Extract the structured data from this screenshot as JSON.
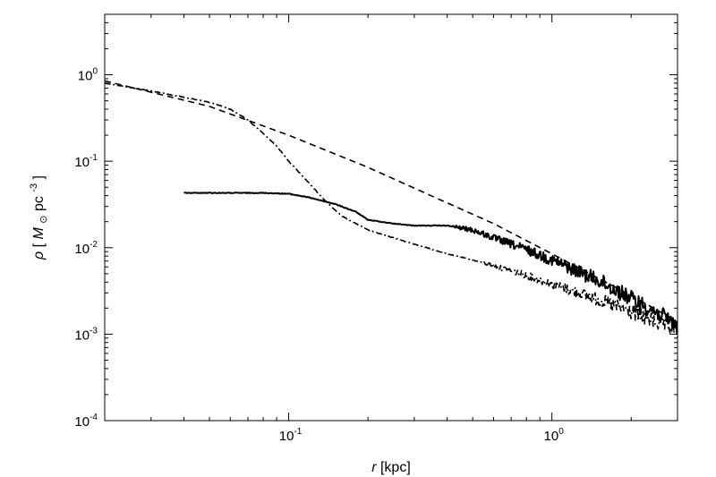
{
  "chart_data": {
    "type": "line",
    "title": "",
    "xlabel": {
      "symbol": "r",
      "unit": "[kpc]"
    },
    "ylabel": {
      "symbol": "ρ",
      "open": "[",
      "mass": "M",
      "mass_sub": "⊙",
      "unit": "pc",
      "unit_exp": "-3",
      "close": "]"
    },
    "x_scale": "log",
    "y_scale": "log",
    "xlim": [
      0.02,
      3.0
    ],
    "ylim": [
      0.0001,
      5.0
    ],
    "x_ticks": [
      {
        "value": 0.1,
        "base": "10",
        "exp": "-1"
      },
      {
        "value": 1.0,
        "base": "10",
        "exp": "0"
      }
    ],
    "y_ticks": [
      {
        "value": 0.0001,
        "base": "10",
        "exp": "-4"
      },
      {
        "value": 0.001,
        "base": "10",
        "exp": "-3"
      },
      {
        "value": 0.01,
        "base": "10",
        "exp": "-2"
      },
      {
        "value": 0.1,
        "base": "10",
        "exp": "-1"
      },
      {
        "value": 1.0,
        "base": "10",
        "exp": "0"
      }
    ],
    "grid": false,
    "legend": "none",
    "series": [
      {
        "style": "dashed",
        "color": "#000000",
        "x": [
          0.02,
          0.05,
          0.1,
          0.2,
          0.4,
          0.6,
          1.0,
          2.0,
          3.0
        ],
        "y": [
          0.85,
          0.43,
          0.2,
          0.085,
          0.033,
          0.019,
          0.0085,
          0.0028,
          0.0014
        ]
      },
      {
        "style": "dash-dot",
        "color": "#000000",
        "x": [
          0.02,
          0.03,
          0.04,
          0.05,
          0.06,
          0.07,
          0.08,
          0.09,
          0.1,
          0.12,
          0.14,
          0.16,
          0.2,
          0.25,
          0.3,
          0.4,
          0.5,
          0.6,
          0.8,
          1.0,
          1.5,
          2.0,
          3.0
        ],
        "y": [
          0.8,
          0.65,
          0.55,
          0.48,
          0.4,
          0.3,
          0.21,
          0.15,
          0.1,
          0.055,
          0.033,
          0.023,
          0.016,
          0.013,
          0.011,
          0.0085,
          0.0072,
          0.0062,
          0.0048,
          0.0038,
          0.0025,
          0.0018,
          0.0011
        ]
      },
      {
        "style": "solid",
        "color": "#000000",
        "x": [
          0.04,
          0.06,
          0.08,
          0.1,
          0.12,
          0.15,
          0.18,
          0.2,
          0.25,
          0.3,
          0.4,
          0.5,
          0.6,
          0.8,
          1.0,
          1.5,
          2.0,
          3.0
        ],
        "y": [
          0.043,
          0.043,
          0.043,
          0.042,
          0.038,
          0.032,
          0.026,
          0.021,
          0.019,
          0.018,
          0.018,
          0.016,
          0.013,
          0.0095,
          0.0072,
          0.0042,
          0.0026,
          0.0013
        ]
      }
    ]
  }
}
